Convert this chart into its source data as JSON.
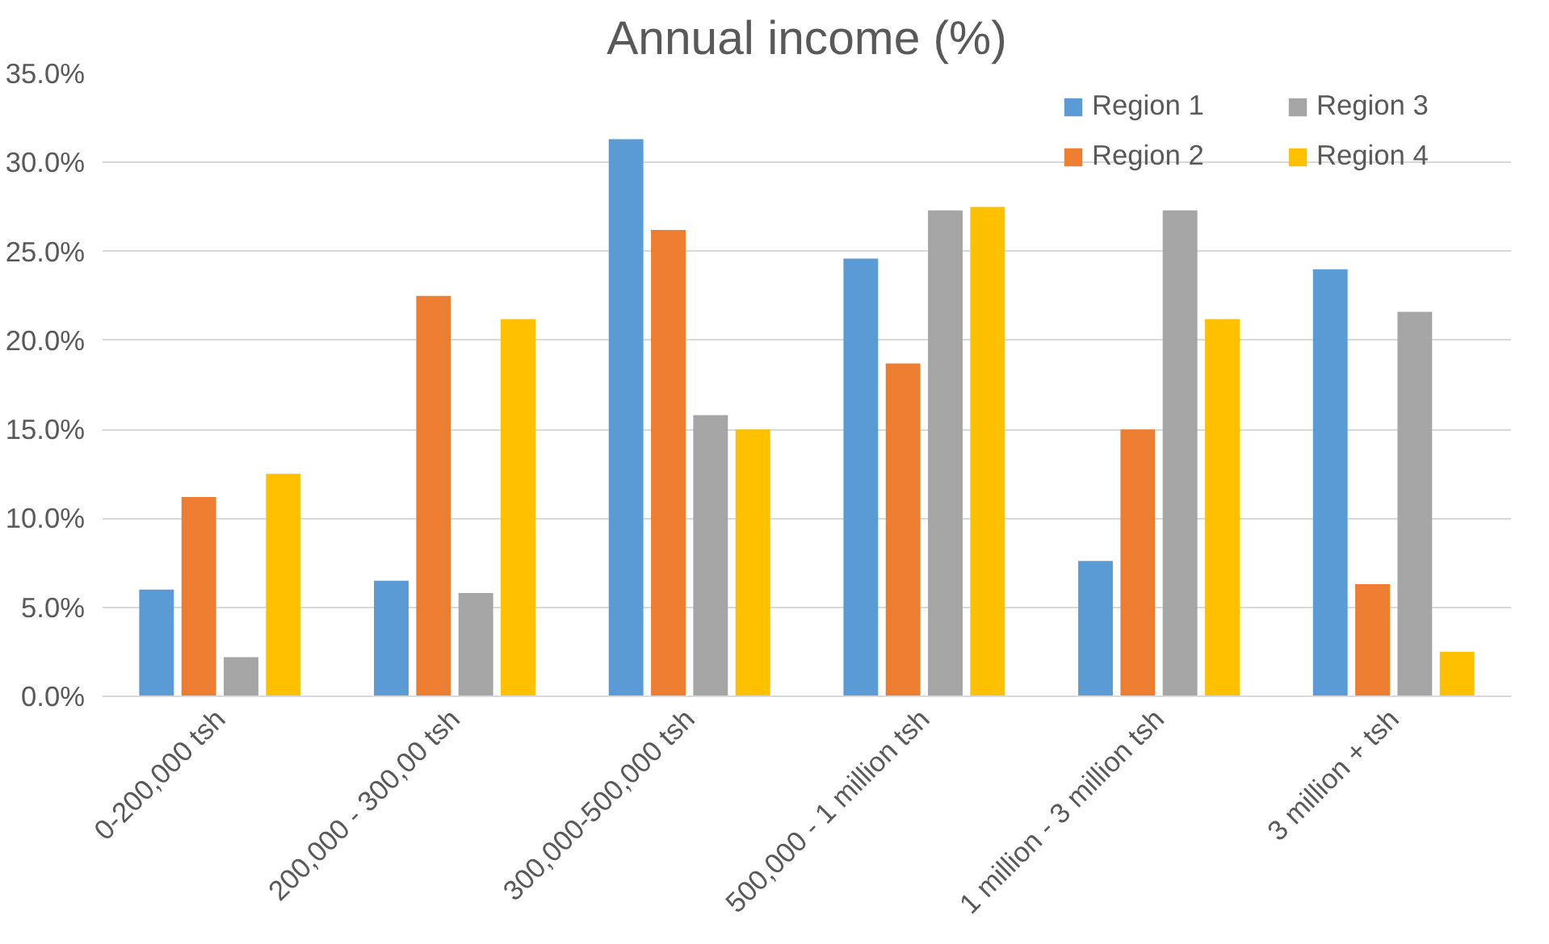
{
  "chart_data": {
    "type": "bar",
    "title": "Annual income (%)",
    "categories": [
      "0-200,000 tsh",
      "200,000 - 300,00 tsh",
      "300,000-500,000 tsh",
      "500,000 - 1 million tsh",
      "1 million - 3 million tsh",
      "3 million + tsh"
    ],
    "series": [
      {
        "name": "Region 1",
        "color": "#5b9bd5",
        "values": [
          6.0,
          6.5,
          31.3,
          24.6,
          7.6,
          24.0
        ]
      },
      {
        "name": "Region 2",
        "color": "#ed7d31",
        "values": [
          11.2,
          22.5,
          26.2,
          18.7,
          15.0,
          6.3
        ]
      },
      {
        "name": "Region 3",
        "color": "#a5a5a5",
        "values": [
          2.2,
          5.8,
          15.8,
          27.3,
          27.3,
          21.6
        ]
      },
      {
        "name": "Region 4",
        "color": "#ffc000",
        "values": [
          12.5,
          21.2,
          15.0,
          27.5,
          21.2,
          2.5
        ]
      }
    ],
    "ylim": [
      0,
      35
    ],
    "yticks": [
      {
        "value": 0,
        "label": "0.0%"
      },
      {
        "value": 5,
        "label": "5.0%"
      },
      {
        "value": 10,
        "label": "10.0%"
      },
      {
        "value": 15,
        "label": "15.0%"
      },
      {
        "value": 20,
        "label": "20.0%"
      },
      {
        "value": 25,
        "label": "25.0%"
      },
      {
        "value": 30,
        "label": "30.0%"
      },
      {
        "value": 35,
        "label": "35.0%"
      }
    ],
    "grid": "y",
    "legend": "top right"
  }
}
